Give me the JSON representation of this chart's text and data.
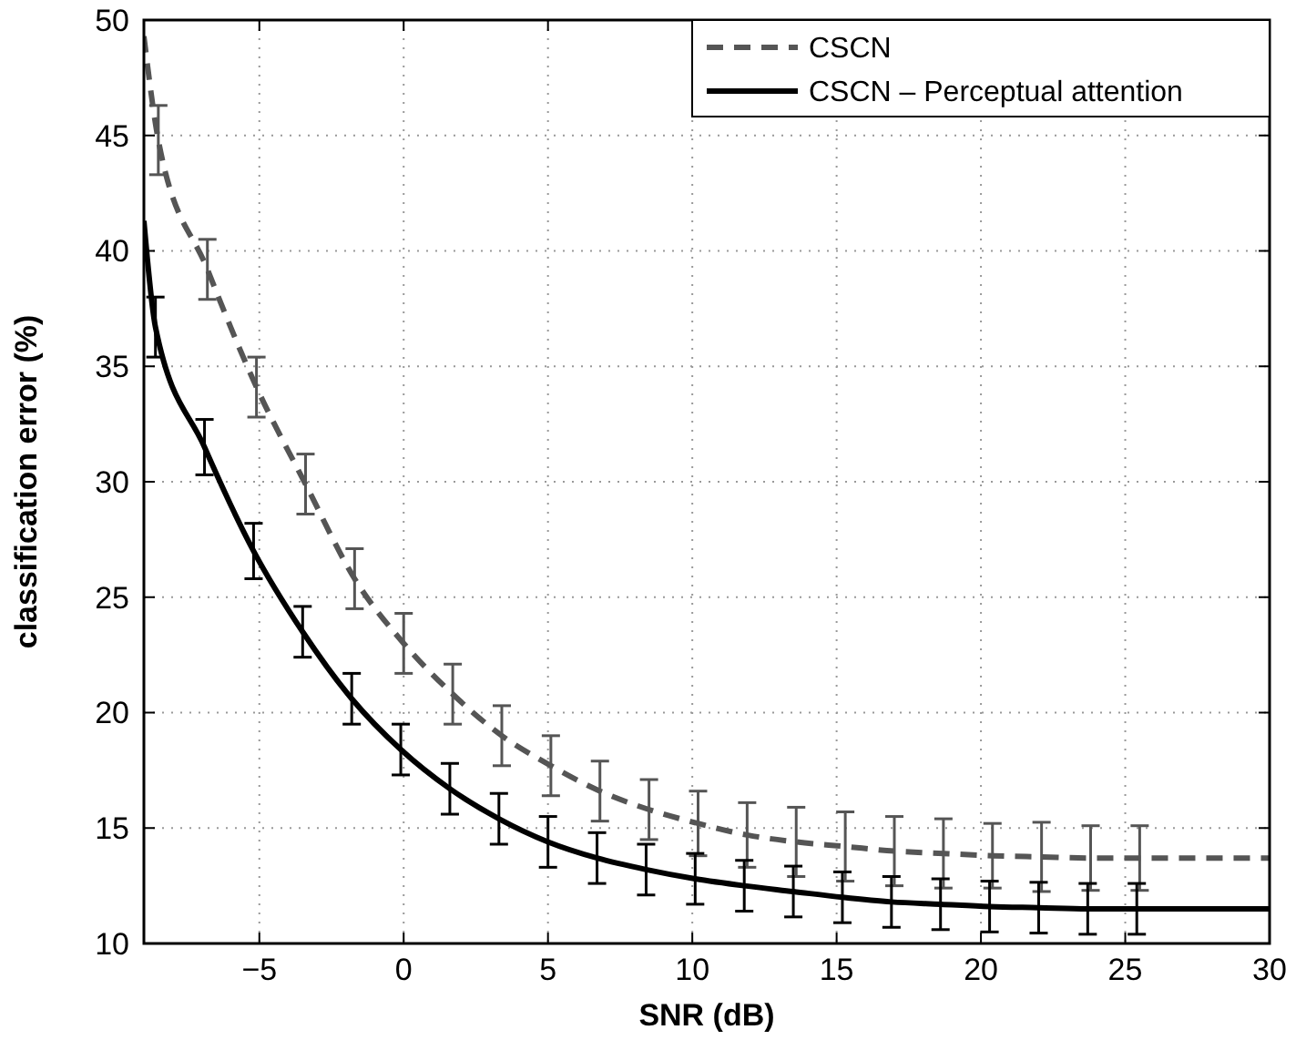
{
  "chart_data": {
    "type": "line",
    "xlabel": "SNR (dB)",
    "ylabel": "classification error (%)",
    "xlim": [
      -9,
      30
    ],
    "ylim": [
      10,
      50
    ],
    "xticks": [
      -5,
      0,
      5,
      10,
      15,
      20,
      25,
      30
    ],
    "yticks": [
      10,
      15,
      20,
      25,
      30,
      35,
      40,
      45,
      50
    ],
    "grid": true,
    "legend": "top right",
    "series": [
      {
        "name": "CSCN",
        "color": "#555555",
        "line_style": "dashed",
        "x": [
          -9,
          -8.5,
          -6.8,
          -5.1,
          -3.4,
          -1.7,
          0,
          1.7,
          3.4,
          5.1,
          6.8,
          8.5,
          10.2,
          11.9,
          13.6,
          15.3,
          17,
          18.7,
          20.4,
          22.1,
          23.8,
          25.5,
          30
        ],
        "values": [
          49.3,
          44.8,
          39.2,
          34.1,
          29.9,
          25.8,
          23,
          20.8,
          19,
          17.7,
          16.6,
          15.8,
          15.2,
          14.7,
          14.4,
          14.2,
          14,
          13.9,
          13.8,
          13.75,
          13.7,
          13.7,
          13.7
        ],
        "errors": [
          null,
          1.5,
          1.3,
          1.3,
          1.3,
          1.3,
          1.3,
          1.3,
          1.3,
          1.3,
          1.3,
          1.3,
          1.4,
          1.4,
          1.5,
          1.5,
          1.5,
          1.5,
          1.4,
          1.5,
          1.4,
          1.4,
          null
        ]
      },
      {
        "name": "CSCN – Perceptual attention",
        "color": "#000000",
        "line_style": "solid",
        "x": [
          -9,
          -8.6,
          -6.9,
          -5.2,
          -3.5,
          -1.8,
          -0.1,
          1.6,
          3.3,
          5,
          6.7,
          8.4,
          10.1,
          11.8,
          13.5,
          15.2,
          16.9,
          18.6,
          20.3,
          22,
          23.7,
          25.4,
          30
        ],
        "values": [
          41.3,
          36.7,
          31.5,
          27,
          23.5,
          20.6,
          18.4,
          16.7,
          15.4,
          14.4,
          13.7,
          13.2,
          12.8,
          12.5,
          12.25,
          12,
          11.8,
          11.7,
          11.6,
          11.55,
          11.5,
          11.5,
          11.5
        ],
        "errors": [
          null,
          1.3,
          1.2,
          1.2,
          1.1,
          1.1,
          1.1,
          1.1,
          1.1,
          1.1,
          1.1,
          1.1,
          1.1,
          1.1,
          1.1,
          1.1,
          1.1,
          1.1,
          1.1,
          1.1,
          1.1,
          1.1,
          null
        ]
      }
    ]
  }
}
